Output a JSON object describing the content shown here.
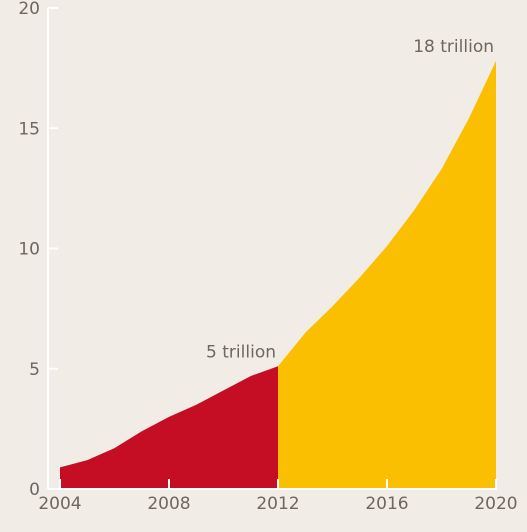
{
  "chart_data": {
    "type": "area",
    "title": "",
    "xlabel": "",
    "ylabel": "",
    "xlim": [
      2004,
      2020
    ],
    "ylim": [
      0,
      20
    ],
    "x_ticks": [
      2004,
      2008,
      2012,
      2016,
      2020
    ],
    "y_ticks": [
      0,
      5,
      10,
      15,
      20
    ],
    "grid": false,
    "series": [
      {
        "color": "#c50e24",
        "x": [
          2004,
          2005,
          2006,
          2007,
          2008,
          2009,
          2010,
          2011,
          2012
        ],
        "y": [
          0.9,
          1.2,
          1.7,
          2.4,
          3.0,
          3.5,
          4.1,
          4.7,
          5.1
        ]
      },
      {
        "color": "#f9bf00",
        "x": [
          2012,
          2013,
          2014,
          2015,
          2016,
          2017,
          2018,
          2019,
          2020
        ],
        "y": [
          5.1,
          6.5,
          7.6,
          8.8,
          10.1,
          11.6,
          13.3,
          15.4,
          17.8
        ]
      }
    ],
    "annotations": [
      {
        "text": "5 trillion",
        "x": 2012,
        "y": 5.1
      },
      {
        "text": "18 trillion",
        "x": 2020,
        "y": 17.8
      }
    ]
  }
}
